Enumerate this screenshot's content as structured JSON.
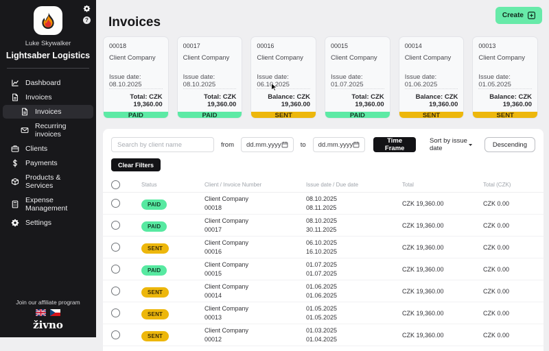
{
  "sidebar": {
    "user_name": "Luke Skywalker",
    "company_name": "Lightsaber Logistics",
    "nav": [
      {
        "label": "Dashboard",
        "icon": "chart",
        "active": false,
        "sub": false
      },
      {
        "label": "Invoices",
        "icon": "invoice",
        "active": false,
        "sub": false
      },
      {
        "label": "Invoices",
        "icon": "invoice",
        "active": true,
        "sub": true
      },
      {
        "label": "Recurring invoices",
        "icon": "recurring",
        "active": false,
        "sub": true
      },
      {
        "label": "Clients",
        "icon": "briefcase",
        "active": false,
        "sub": false
      },
      {
        "label": "Payments",
        "icon": "dollar",
        "active": false,
        "sub": false
      },
      {
        "label": "Products & Services",
        "icon": "products",
        "active": false,
        "sub": false
      },
      {
        "label": "Expense Management",
        "icon": "expense",
        "active": false,
        "sub": false
      },
      {
        "label": "Settings",
        "icon": "gear",
        "active": false,
        "sub": false
      }
    ],
    "footer": {
      "affiliate_label": "Join our affiliate program",
      "languages": [
        "english",
        "czech"
      ],
      "brand": "živno"
    }
  },
  "header": {
    "title": "Invoices",
    "create_button": "Create"
  },
  "cards": [
    {
      "number": "00018",
      "client": "Client Company",
      "issue_line": "Issue date: 08.10.2025",
      "amount_line": "Total: CZK 19,360.00",
      "status": "PAID"
    },
    {
      "number": "00017",
      "client": "Client Company",
      "issue_line": "Issue date: 08.10.2025",
      "amount_line": "Total: CZK 19,360.00",
      "status": "PAID"
    },
    {
      "number": "00016",
      "client": "Client Company",
      "issue_line": "Issue date: 06.10.2025",
      "amount_line": "Balance: CZK 19,360.00",
      "status": "SENT"
    },
    {
      "number": "00015",
      "client": "Client Company",
      "issue_line": "Issue date: 01.07.2025",
      "amount_line": "Total: CZK 19,360.00",
      "status": "PAID"
    },
    {
      "number": "00014",
      "client": "Client Company",
      "issue_line": "Issue date: 01.06.2025",
      "amount_line": "Balance: CZK 19,360.00",
      "status": "SENT"
    },
    {
      "number": "00013",
      "client": "Client Company",
      "issue_line": "Issue date: 01.05.2025",
      "amount_line": "Balance: CZK 19,360.00",
      "status": "SENT"
    }
  ],
  "filters": {
    "search_placeholder": "Search by client name",
    "from_label": "from",
    "to_label": "to",
    "date_placeholder": "dd.mm.yyyy",
    "time_frame_button": "Time Frame",
    "sort_value": "Sort by issue date",
    "direction_button": "Descending",
    "clear_button": "Clear Filters"
  },
  "table": {
    "columns": [
      "Status",
      "Client / Invoice Number",
      "Issue date / Due date",
      "Total",
      "Total (CZK)"
    ],
    "rows": [
      {
        "status": "PAID",
        "client": "Client Company",
        "invoice_number": "00018",
        "issue_date": "08.10.2025",
        "due_date": "08.11.2025",
        "total": "CZK 19,360.00",
        "total_czk": "CZK 0.00"
      },
      {
        "status": "PAID",
        "client": "Client Company",
        "invoice_number": "00017",
        "issue_date": "08.10.2025",
        "due_date": "30.11.2025",
        "total": "CZK 19,360.00",
        "total_czk": "CZK 0.00"
      },
      {
        "status": "SENT",
        "client": "Client Company",
        "invoice_number": "00016",
        "issue_date": "06.10.2025",
        "due_date": "16.10.2025",
        "total": "CZK 19,360.00",
        "total_czk": "CZK 0.00"
      },
      {
        "status": "PAID",
        "client": "Client Company",
        "invoice_number": "00015",
        "issue_date": "01.07.2025",
        "due_date": "01.07.2025",
        "total": "CZK 19,360.00",
        "total_czk": "CZK 0.00"
      },
      {
        "status": "SENT",
        "client": "Client Company",
        "invoice_number": "00014",
        "issue_date": "01.06.2025",
        "due_date": "01.06.2025",
        "total": "CZK 19,360.00",
        "total_czk": "CZK 0.00"
      },
      {
        "status": "SENT",
        "client": "Client Company",
        "invoice_number": "00013",
        "issue_date": "01.05.2025",
        "due_date": "01.05.2025",
        "total": "CZK 19,360.00",
        "total_czk": "CZK 0.00"
      },
      {
        "status": "SENT",
        "client": "Client Company",
        "invoice_number": "00012",
        "issue_date": "01.03.2025",
        "due_date": "01.04.2025",
        "total": "CZK 19,360.00",
        "total_czk": "CZK 0.00"
      }
    ]
  },
  "colors": {
    "paid_green": "#57E9A1",
    "sent_yellow": "#EDB70C",
    "create_green": "#67EAA9",
    "sidebar_bg": "#18181B",
    "button_dark": "#131316",
    "main_bg": "#EFEFF1"
  }
}
